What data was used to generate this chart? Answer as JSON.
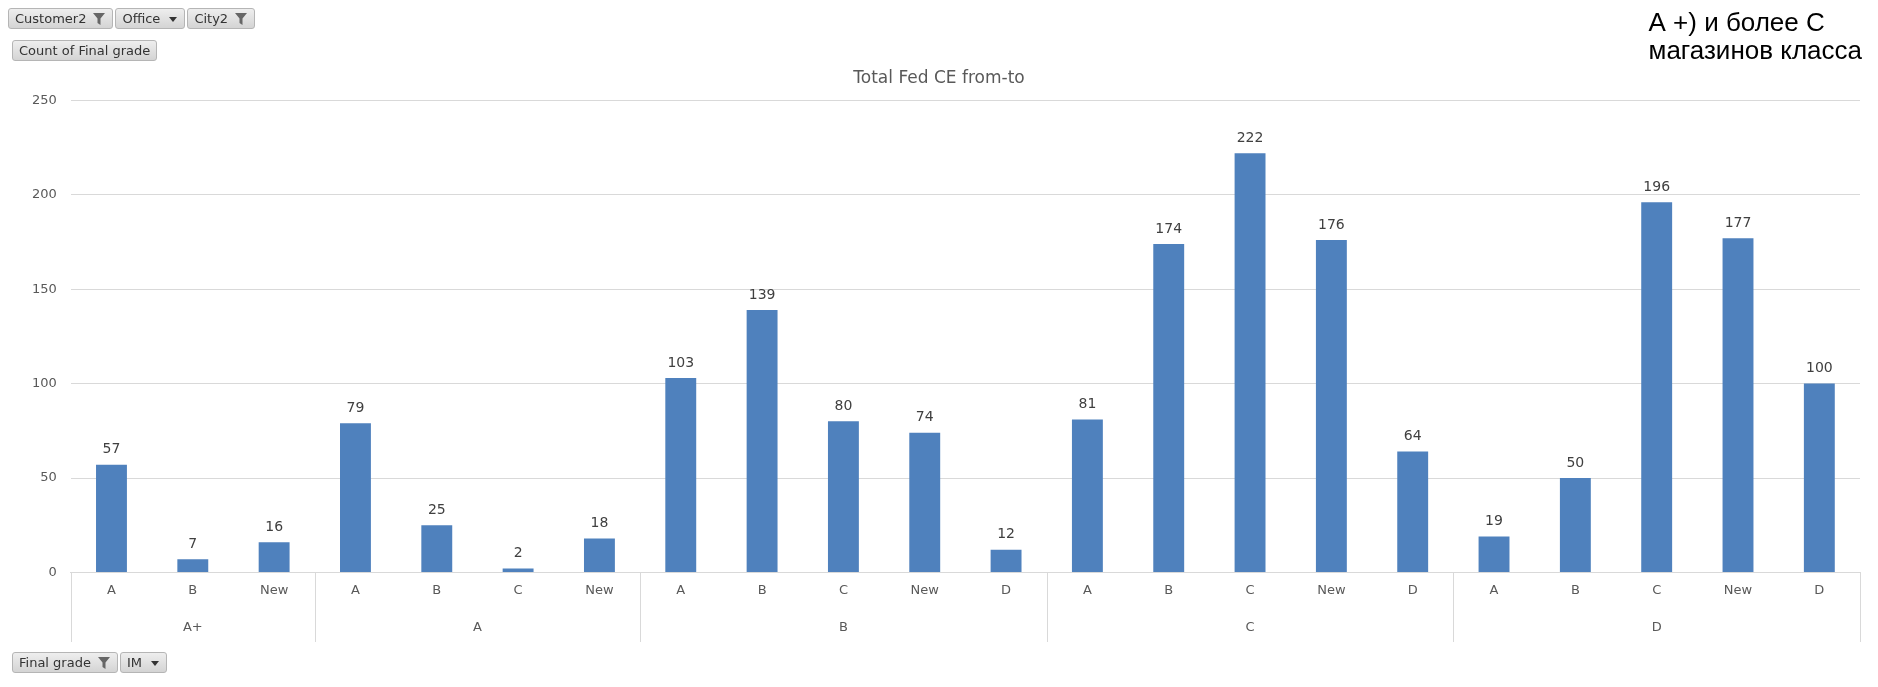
{
  "chart_data": {
    "type": "bar",
    "title": "Total Fed CE from-to",
    "categories": [
      "A",
      "B",
      "New",
      "A",
      "B",
      "C",
      "New",
      "A",
      "B",
      "C",
      "New",
      "D",
      "A",
      "B",
      "C",
      "New",
      "D",
      "A",
      "B",
      "C",
      "New",
      "D"
    ],
    "values": [
      57,
      7,
      16,
      79,
      25,
      2,
      18,
      103,
      139,
      80,
      74,
      12,
      81,
      174,
      222,
      176,
      64,
      19,
      50,
      196,
      177,
      100
    ],
    "color": "#4f81bd",
    "ylim": [
      0,
      250
    ],
    "yticks": [
      0,
      50,
      100,
      150,
      200,
      250
    ],
    "grid": "y",
    "legend": false,
    "data_labels": true,
    "annotations": [
      "A+",
      "A",
      "B",
      "C",
      "D",
      "Customer2",
      "Office",
      "City2",
      "Count of Final grade",
      "Final grade",
      "IM",
      "А +) и более С",
      "магазинов класса"
    ]
  }
}
